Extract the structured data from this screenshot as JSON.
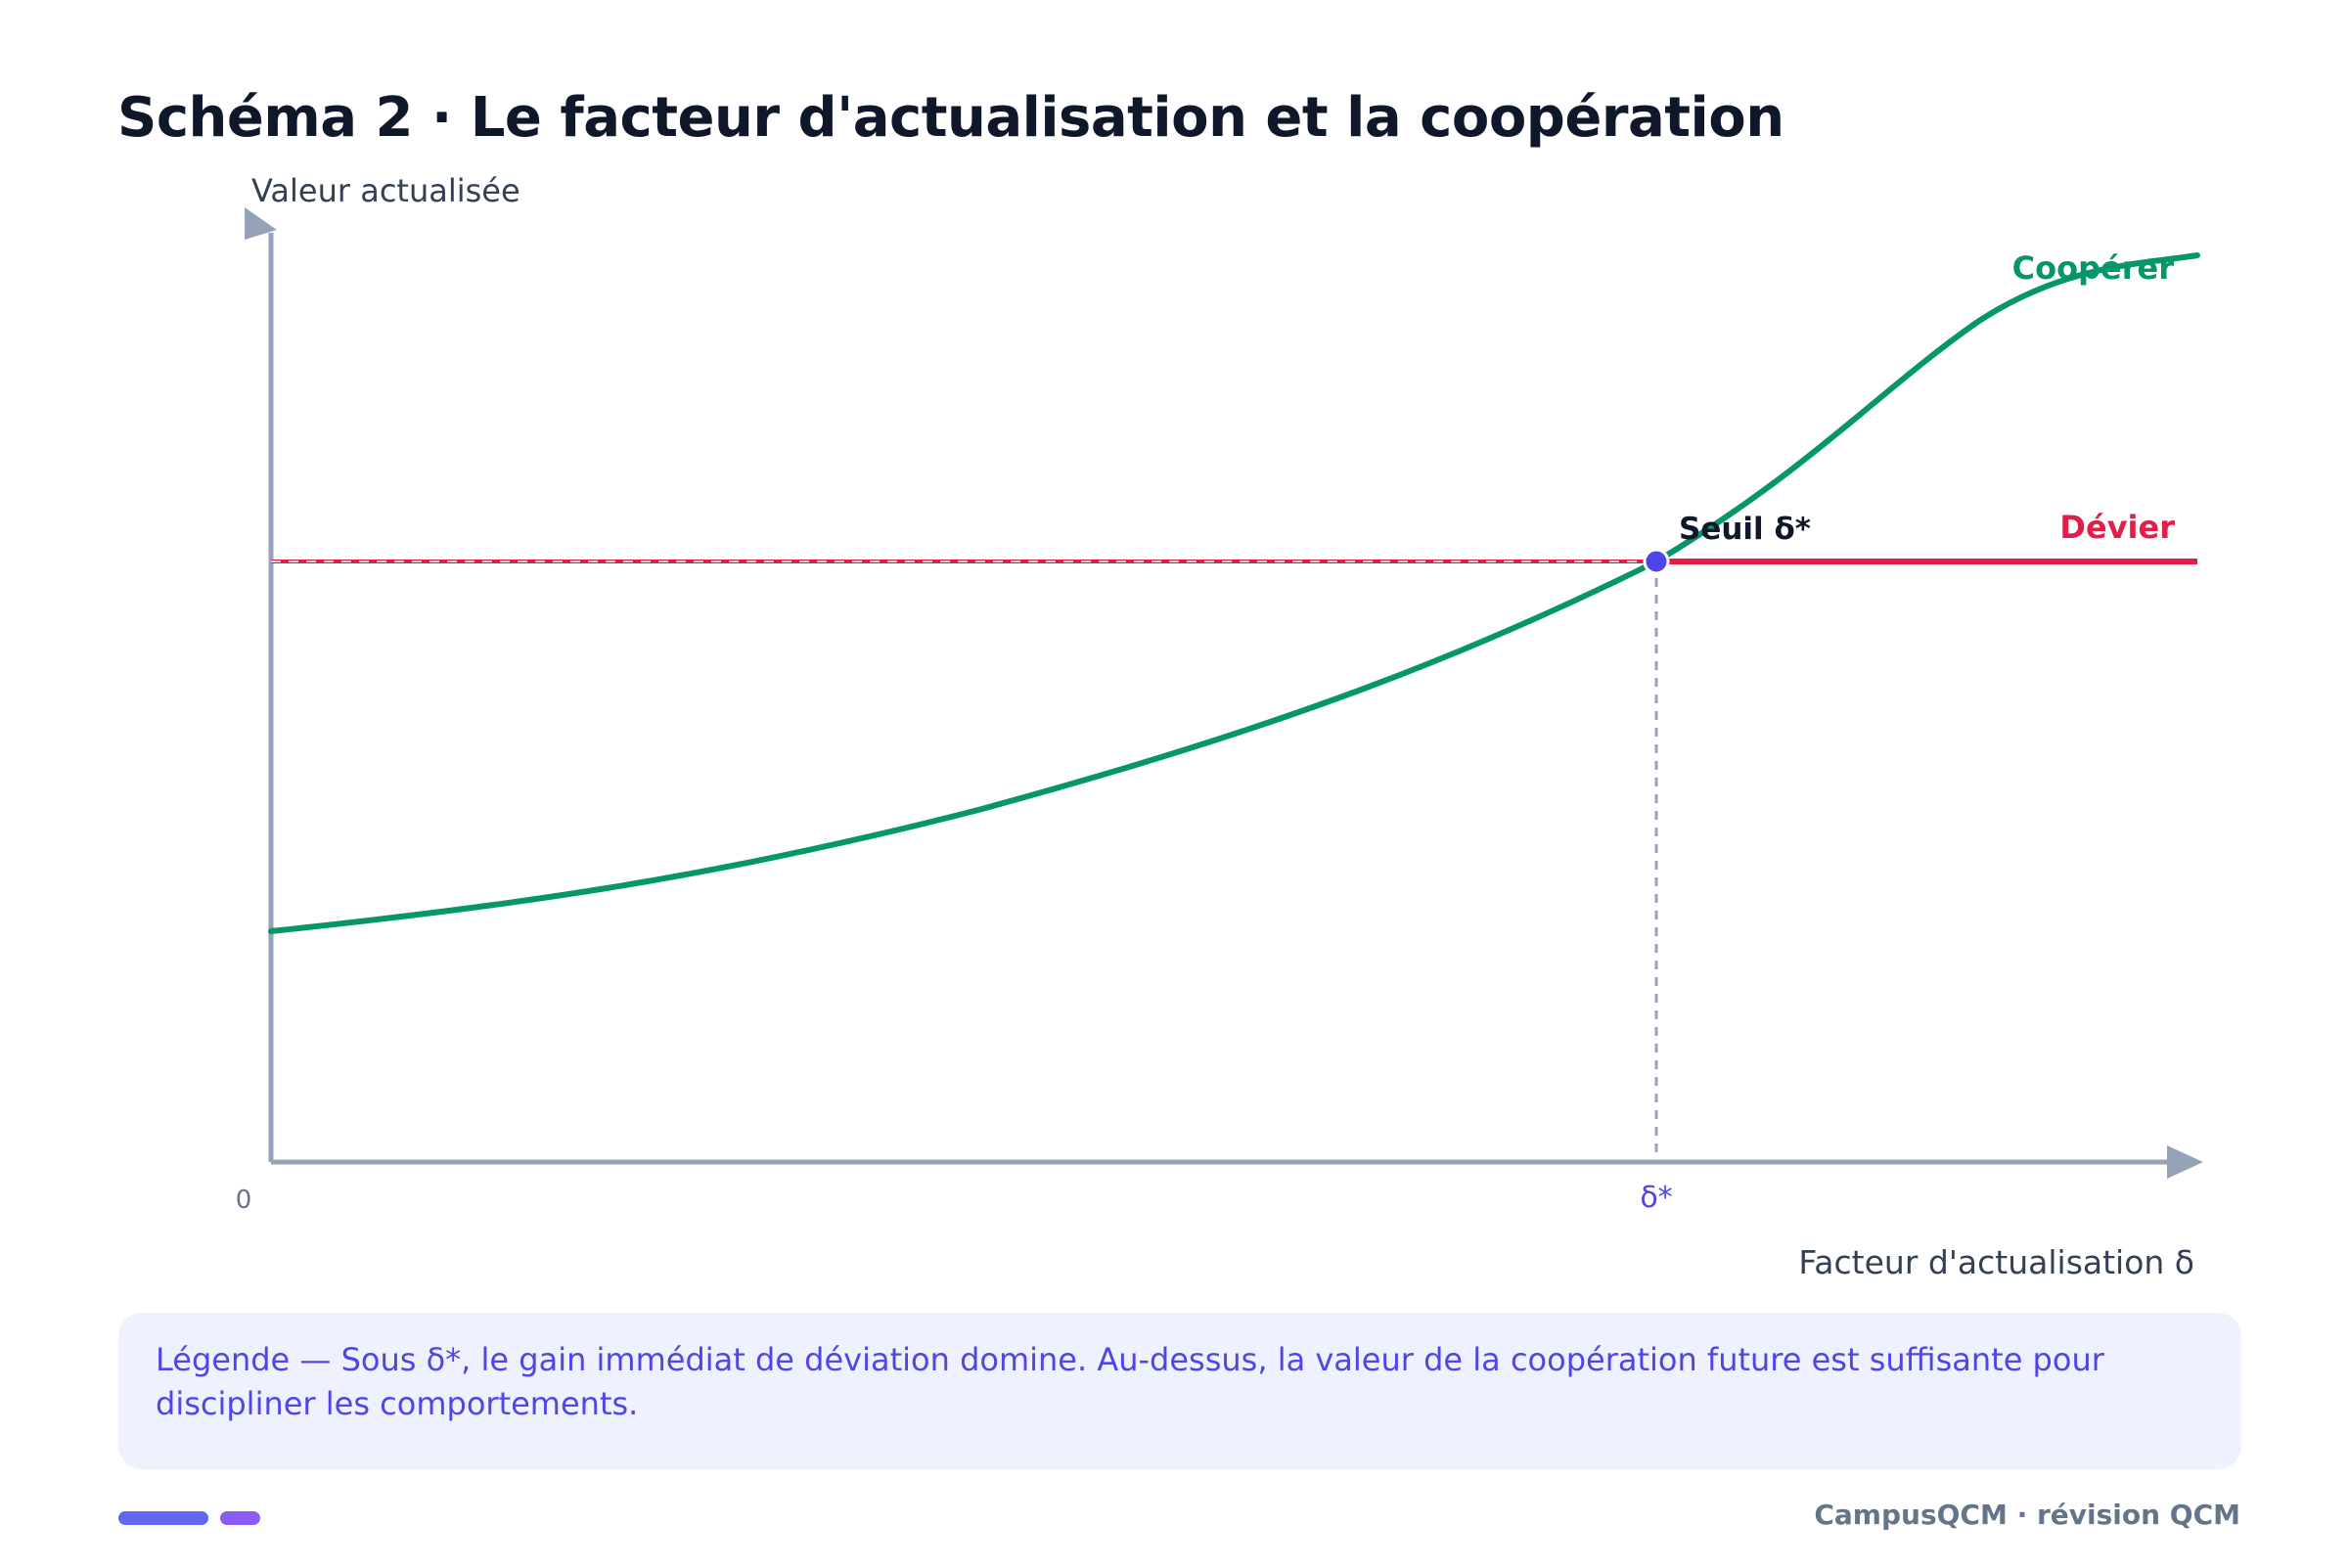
{
  "title": "Schéma 2 · Le facteur d'actualisation et la coopération",
  "axes": {
    "y_label": "Valeur actualisée",
    "x_label": "Facteur d'actualisation δ",
    "origin_label": "0",
    "threshold_tick": "δ*"
  },
  "curves": {
    "cooperate_label": "Coopérer",
    "deviate_label": "Dévier"
  },
  "threshold": {
    "label": "Seuil δ*"
  },
  "legend": {
    "text": "Légende — Sous δ*, le gain immédiat de déviation domine. Au-dessus, la valeur de la coopération future est suffisante pour discipliner les comportements."
  },
  "footer": {
    "brand": "CampusQCM · révision QCM"
  },
  "colors": {
    "title": "#0f172a",
    "axis": "#94a3b8",
    "cooperate": "#059669",
    "deviate": "#e11d48",
    "threshold_point": "#4f46e5",
    "legend_bg": "#eef2fe",
    "legend_text": "#4f46e5"
  }
}
